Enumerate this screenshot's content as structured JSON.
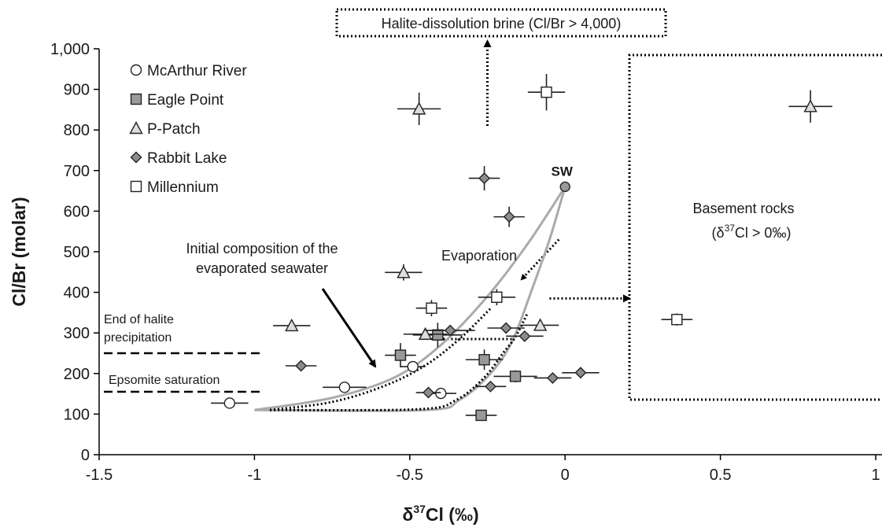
{
  "chart_data": {
    "type": "scatter",
    "xlabel": "δ³⁷Cl (‰)",
    "ylabel": "Cl/Br (molar)",
    "xlim": [
      -1.5,
      1
    ],
    "ylim": [
      0,
      1000
    ],
    "xticks": [
      "-1.5",
      "-1",
      "-0.5",
      "0",
      "0.5",
      "1"
    ],
    "yticks": [
      "0",
      "100",
      "200",
      "300",
      "400",
      "500",
      "600",
      "700",
      "800",
      "900",
      "1,000"
    ],
    "grid": false,
    "legend_position": "top-left",
    "series": [
      {
        "name": "McArthur River",
        "marker": "circle",
        "fill": "#ffffff",
        "points": [
          {
            "x": -1.08,
            "y": 127,
            "xerr": 0.06,
            "yerr": 0
          },
          {
            "x": -0.71,
            "y": 166,
            "xerr": 0.07,
            "yerr": 0
          },
          {
            "x": -0.49,
            "y": 217,
            "xerr": 0.04,
            "yerr": 0
          },
          {
            "x": -0.4,
            "y": 151,
            "xerr": 0.05,
            "yerr": 0
          }
        ]
      },
      {
        "name": "Eagle Point",
        "marker": "square",
        "fill": "#999999",
        "points": [
          {
            "x": -0.53,
            "y": 245,
            "xerr": 0.05,
            "yerr": 30
          },
          {
            "x": -0.41,
            "y": 295,
            "xerr": 0.08,
            "yerr": 30
          },
          {
            "x": -0.26,
            "y": 234,
            "xerr": 0.06,
            "yerr": 25
          },
          {
            "x": -0.16,
            "y": 193,
            "xerr": 0.07,
            "yerr": 15
          },
          {
            "x": -0.27,
            "y": 97,
            "xerr": 0.05,
            "yerr": 0
          }
        ]
      },
      {
        "name": "P-Patch",
        "marker": "triangle",
        "fill": "#dddddd",
        "points": [
          {
            "x": -0.47,
            "y": 852,
            "xerr": 0.07,
            "yerr": 40
          },
          {
            "x": -0.52,
            "y": 449,
            "xerr": 0.06,
            "yerr": 20
          },
          {
            "x": -0.88,
            "y": 318,
            "xerr": 0.06,
            "yerr": 0
          },
          {
            "x": -0.45,
            "y": 297,
            "xerr": 0.07,
            "yerr": 0
          },
          {
            "x": -0.08,
            "y": 319,
            "xerr": 0.06,
            "yerr": 0
          },
          {
            "x": 0.79,
            "y": 858,
            "xerr": 0.07,
            "yerr": 40
          }
        ]
      },
      {
        "name": "Rabbit Lake",
        "marker": "diamond",
        "fill": "#8c8c8c",
        "points": [
          {
            "x": -0.26,
            "y": 681,
            "xerr": 0.05,
            "yerr": 30
          },
          {
            "x": -0.18,
            "y": 586,
            "xerr": 0.05,
            "yerr": 25
          },
          {
            "x": -0.37,
            "y": 306,
            "xerr": 0.08,
            "yerr": 0
          },
          {
            "x": -0.19,
            "y": 312,
            "xerr": 0.06,
            "yerr": 0
          },
          {
            "x": -0.13,
            "y": 292,
            "xerr": 0.06,
            "yerr": 0
          },
          {
            "x": -0.85,
            "y": 219,
            "xerr": 0.05,
            "yerr": 0
          },
          {
            "x": -0.44,
            "y": 153,
            "xerr": 0.04,
            "yerr": 0
          },
          {
            "x": -0.24,
            "y": 168,
            "xerr": 0.05,
            "yerr": 0
          },
          {
            "x": -0.04,
            "y": 189,
            "xerr": 0.06,
            "yerr": 0
          },
          {
            "x": 0.05,
            "y": 202,
            "xerr": 0.06,
            "yerr": 0
          }
        ]
      },
      {
        "name": "Millennium",
        "marker": "square",
        "fill": "#ffffff",
        "points": [
          {
            "x": -0.06,
            "y": 893,
            "xerr": 0.06,
            "yerr": 45
          },
          {
            "x": -0.43,
            "y": 361,
            "xerr": 0.05,
            "yerr": 20
          },
          {
            "x": -0.22,
            "y": 388,
            "xerr": 0.06,
            "yerr": 20
          },
          {
            "x": 0.36,
            "y": 333,
            "xerr": 0.05,
            "yerr": 15
          }
        ]
      }
    ],
    "sw_point": {
      "label": "SW",
      "x": 0,
      "y": 660
    },
    "curves": {
      "upper_gray": [
        [
          -1,
          110
        ],
        [
          -0.75,
          140
        ],
        [
          -0.55,
          190
        ],
        [
          -0.4,
          270
        ],
        [
          -0.25,
          390
        ],
        [
          -0.12,
          520
        ],
        [
          0,
          660
        ]
      ],
      "lower_gray": [
        [
          -1,
          110
        ],
        [
          -0.45,
          110
        ],
        [
          -0.34,
          135
        ],
        [
          -0.24,
          200
        ],
        [
          -0.17,
          280
        ],
        [
          -0.11,
          400
        ],
        [
          -0.05,
          530
        ],
        [
          0,
          660
        ]
      ],
      "upper_dotted": [
        [
          -0.95,
          110
        ],
        [
          -0.75,
          130
        ],
        [
          -0.58,
          170
        ],
        [
          -0.45,
          220
        ],
        [
          -0.34,
          285
        ],
        [
          -0.24,
          360
        ]
      ],
      "lower_dotted": [
        [
          -0.95,
          110
        ],
        [
          -0.47,
          112
        ],
        [
          -0.35,
          135
        ],
        [
          -0.26,
          190
        ],
        [
          -0.2,
          250
        ],
        [
          -0.16,
          290
        ],
        [
          -0.12,
          350
        ]
      ]
    },
    "annotations": {
      "halite_brine": "Halite-dissolution brine (Cl/Br > 4,000)",
      "basement_line1": "Basement rocks",
      "basement_line2_prefix": "(δ",
      "basement_line2_sup": "37",
      "basement_line2_suffix": "Cl > 0‰)",
      "initial_line1": "Initial composition of the",
      "initial_line2": "evaporated seawater",
      "evaporation": "Evaporation",
      "halite_end_line1": "End of halite",
      "halite_end_line2": "precipitation",
      "epsomite": "Epsomite saturation",
      "halite_end_y": 250,
      "epsomite_y": 155
    }
  }
}
